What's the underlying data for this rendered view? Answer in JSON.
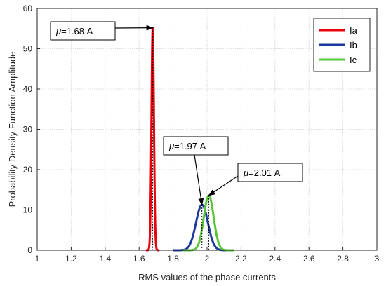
{
  "chart_data": {
    "type": "line",
    "xlabel": "RMS values of the phase currents",
    "ylabel": "Probability Density Function Amplitude",
    "xlim": [
      1,
      3
    ],
    "ylim": [
      0,
      60
    ],
    "xticks": [
      "1",
      "1.2",
      "1.4",
      "1.6",
      "1.8",
      "2",
      "2.2",
      "2.4",
      "2.6",
      "2.8",
      "3"
    ],
    "yticks": [
      "0",
      "10",
      "20",
      "30",
      "40",
      "50",
      "60"
    ],
    "grid": true,
    "legend_position": "top-right",
    "series": [
      {
        "name": "Ia",
        "color": "#e8000b",
        "mean": 1.68,
        "sigma": 0.0072,
        "peak": 55.2,
        "range": [
          1.64,
          1.72
        ]
      },
      {
        "name": "Ib",
        "color": "#1f3a9e",
        "mean": 1.97,
        "sigma": 0.035,
        "peak": 11.3,
        "range": [
          1.8,
          2.13
        ]
      },
      {
        "name": "Ic",
        "color": "#5ac639",
        "mean": 2.01,
        "sigma": 0.029,
        "peak": 13.6,
        "range": [
          1.86,
          2.16
        ]
      }
    ],
    "annotations": [
      {
        "mu_symbol": "μ",
        "text": "=1.68 A",
        "series": "Ia"
      },
      {
        "mu_symbol": "μ",
        "text": "=1.97 A",
        "series": "Ib"
      },
      {
        "mu_symbol": "μ",
        "text": "=2.01 A",
        "series": "Ic"
      }
    ]
  }
}
